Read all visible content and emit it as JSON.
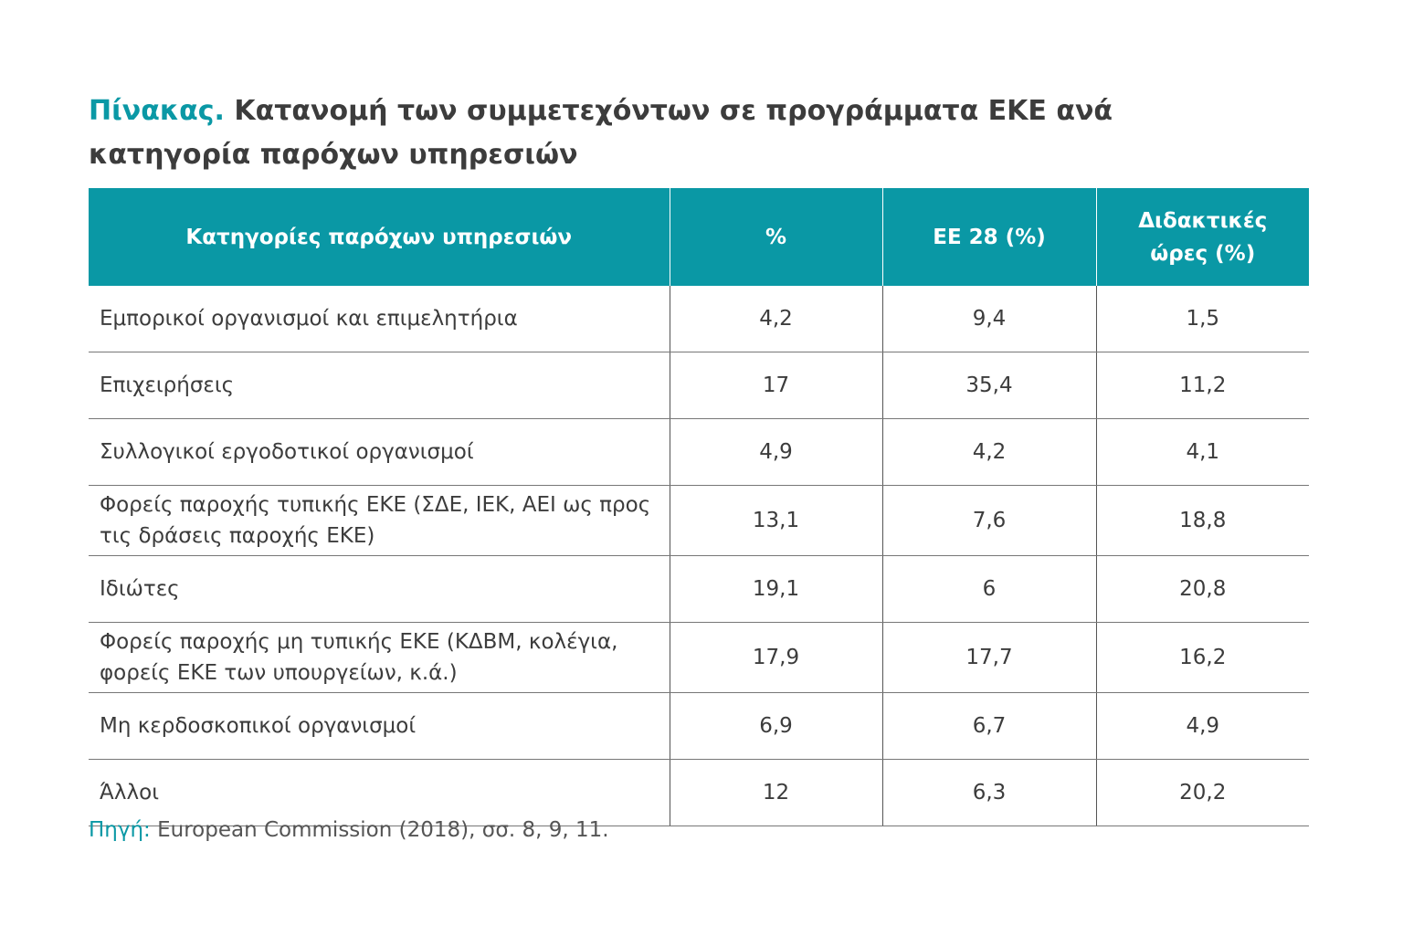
{
  "title": {
    "label": "Πίνακας.",
    "text": "Κατανομή των συμμετεχόντων σε προγράμματα ΕΚΕ ανά κατηγορία παρόχων υπηρεσιών"
  },
  "table": {
    "columns": [
      "Κατηγορίες παρόχων υπηρεσιών",
      "%",
      "ΕΕ 28 (%)",
      "Διδακτικές ώρες (%)"
    ],
    "rows": [
      [
        "Εμπορικοί οργανισμοί και επιμελητήρια",
        "4,2",
        "9,4",
        "1,5"
      ],
      [
        "Επιχειρήσεις",
        "17",
        "35,4",
        "11,2"
      ],
      [
        "Συλλογικοί εργοδοτικοί οργανισμοί",
        "4,9",
        "4,2",
        "4,1"
      ],
      [
        "Φορείς παροχής τυπικής ΕΚΕ (ΣΔΕ, ΙΕΚ, ΑΕΙ ως προς τις δράσεις παροχής ΕΚΕ)",
        "13,1",
        "7,6",
        "18,8"
      ],
      [
        "Ιδιώτες",
        "19,1",
        "6",
        "20,8"
      ],
      [
        "Φορείς παροχής μη τυπικής ΕΚΕ (ΚΔΒΜ, κολέγια, φορείς ΕΚΕ των υπουργείων, κ.ά.)",
        "17,9",
        "17,7",
        "16,2"
      ],
      [
        "Μη κερδοσκοπικοί οργανισμοί",
        "6,9",
        "6,7",
        "4,9"
      ],
      [
        "Άλλοι",
        "12",
        "6,3",
        "20,2"
      ]
    ]
  },
  "source": {
    "label": "Πηγή:",
    "text": "European Commission (2018), σσ. 8, 9, 11."
  }
}
